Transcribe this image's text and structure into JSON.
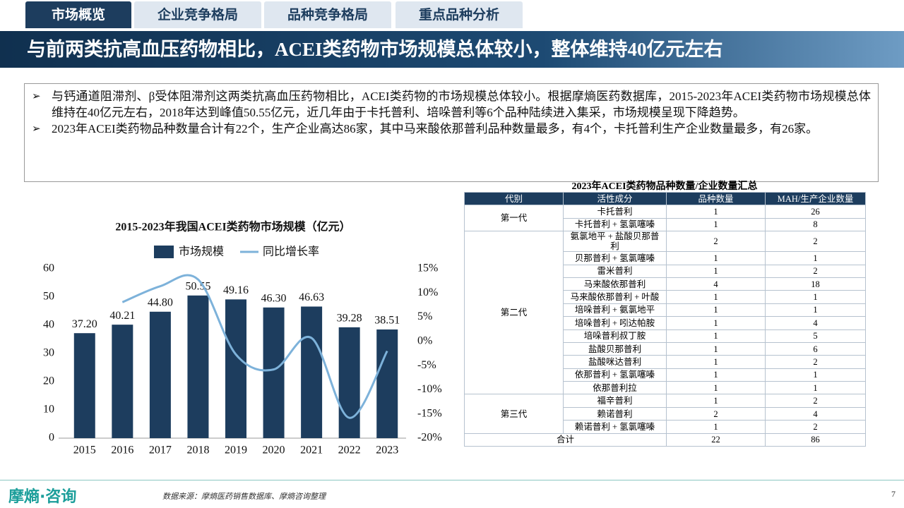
{
  "tabs": [
    "市场概览",
    "企业竞争格局",
    "品种竞争格局",
    "重点品种分析"
  ],
  "header": {
    "title": "与前两类抗高血压药物相比，ACEI类药物市场规模总体较小，整体维持40亿元左右"
  },
  "bullets": [
    "与钙通道阻滞剂、β受体阻滞剂这两类抗高血压药物相比，ACEI类药物的市场规模总体较小。根据摩熵医药数据库，2015-2023年ACEI类药物市场规模总体维持在40亿元左右，2018年达到峰值50.55亿元，近几年由于卡托普利、培哚普利等6个品种陆续进入集采，市场规模呈现下降趋势。",
    "2023年ACEI类药物品种数量合计有22个，生产企业高达86家，其中马来酸依那普利品种数量最多，有4个，卡托普利生产企业数量最多，有26家。"
  ],
  "chart_data": {
    "type": "bar",
    "title": "2015-2023年我国ACEI类药物市场规模（亿元）",
    "categories": [
      "2015",
      "2016",
      "2017",
      "2018",
      "2019",
      "2020",
      "2021",
      "2022",
      "2023"
    ],
    "series": [
      {
        "name": "市场规模",
        "color": "#1d3d5e",
        "values": [
          37.2,
          40.21,
          44.8,
          50.55,
          49.16,
          46.3,
          46.63,
          39.28,
          38.51
        ],
        "value_labels": [
          "37.20",
          "40.21",
          "44.80",
          "50.55",
          "49.16",
          "46.30",
          "46.63",
          "39.28",
          "38.51"
        ]
      },
      {
        "name": "同比增长率",
        "color": "#7db2da",
        "type": "line",
        "axis": "y2",
        "values": [
          null,
          8.1,
          11.4,
          12.8,
          -2.7,
          -5.8,
          0.7,
          -15.8,
          -2.0
        ]
      }
    ],
    "ylim": [
      0,
      60
    ],
    "yticks": [
      0,
      10,
      20,
      30,
      40,
      50,
      60
    ],
    "y2lim": [
      -20,
      15
    ],
    "y2ticks": [
      {
        "value": -20,
        "label": "-20%"
      },
      {
        "value": -15,
        "label": "-15%"
      },
      {
        "value": -10,
        "label": "-10%"
      },
      {
        "value": -5,
        "label": "-5%"
      },
      {
        "value": 0,
        "label": "0%"
      },
      {
        "value": 5,
        "label": "5%"
      },
      {
        "value": 10,
        "label": "10%"
      },
      {
        "value": 15,
        "label": "15%"
      }
    ]
  },
  "table": {
    "title": "2023年ACEI类药物品种数量/企业数量汇总",
    "columns": [
      "代别",
      "活性成分",
      "品种数量",
      "MAH/生产企业数量"
    ],
    "groups": [
      {
        "name": "第一代",
        "rows": [
          [
            "卡托普利",
            1,
            26
          ],
          [
            "卡托普利 + 氢氯噻嗪",
            1,
            8
          ]
        ]
      },
      {
        "name": "第二代",
        "rows": [
          [
            "氨氯地平 + 盐酸贝那普利",
            2,
            2
          ],
          [
            "贝那普利 + 氢氯噻嗪",
            1,
            1
          ],
          [
            "雷米普利",
            1,
            2
          ],
          [
            "马来酸依那普利",
            4,
            18
          ],
          [
            "马来酸依那普利 + 叶酸",
            1,
            1
          ],
          [
            "培哚普利 + 氨氯地平",
            1,
            1
          ],
          [
            "培哚普利 + 吲达帕胺",
            1,
            4
          ],
          [
            "培哚普利叔丁胺",
            1,
            5
          ],
          [
            "盐酸贝那普利",
            1,
            6
          ],
          [
            "盐酸咪达普利",
            1,
            2
          ],
          [
            "依那普利 + 氢氯噻嗪",
            1,
            1
          ],
          [
            "依那普利拉",
            1,
            1
          ]
        ]
      },
      {
        "name": "第三代",
        "rows": [
          [
            "福辛普利",
            1,
            2
          ],
          [
            "赖诺普利",
            2,
            4
          ],
          [
            "赖诺普利 + 氢氯噻嗪",
            1,
            2
          ]
        ]
      }
    ],
    "total": [
      "合计",
      22,
      86
    ]
  },
  "footer": {
    "logo": "摩熵·咨询",
    "source": "数据来源：摩熵医药销售数据库、摩熵咨询整理",
    "page": "7"
  }
}
